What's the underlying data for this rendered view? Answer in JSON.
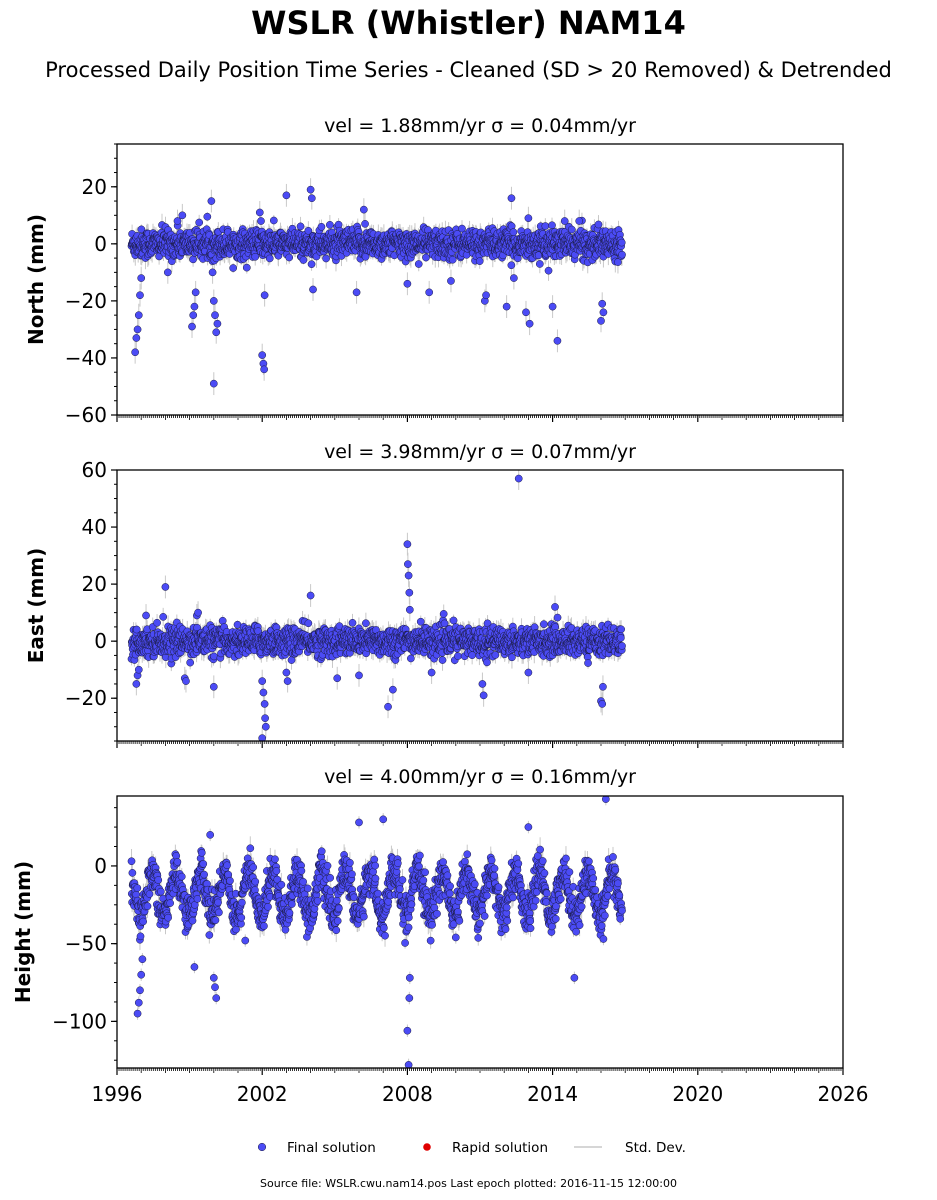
{
  "title": "WSLR (Whistler) NAM14",
  "subtitle": "Processed Daily Position Time Series - Cleaned (SD > 20 Removed) & Detrended",
  "source_text": "Source file: WSLR.cwu.nam14.pos  Last epoch plotted: 2016-11-15 12:00:00",
  "colors": {
    "final": "#4b4bf5",
    "final_edge": "#1a1a40",
    "rapid": "#e00000",
    "stddev": "#c8c8c8"
  },
  "legend": [
    {
      "label": "Final solution",
      "kind": "final",
      "color": "#4b4bf5"
    },
    {
      "label": "Rapid solution",
      "kind": "rapid",
      "color": "#e00000"
    },
    {
      "label": "Std. Dev.",
      "kind": "stddev",
      "color": "#c8c8c8"
    }
  ],
  "chart_data": [
    {
      "type": "scatter",
      "title": "vel = 1.88mm/yr   σ = 0.04mm/yr",
      "ylabel": "North (mm)",
      "xlim": [
        1996,
        2026
      ],
      "ylim": [
        -60,
        35
      ],
      "yticks": [
        20,
        0,
        -20,
        -40,
        -60
      ],
      "xticks": [
        1996,
        2002,
        2008,
        2014,
        2020,
        2026
      ],
      "show_xtick_labels": false,
      "data_span": [
        1996.6,
        2016.87
      ],
      "baseline_noise_mm": 2.5,
      "seasonal_amplitude_mm": 0,
      "points": [
        {
          "x": 1996.75,
          "y": -38
        },
        {
          "x": 1996.8,
          "y": -33
        },
        {
          "x": 1996.85,
          "y": -30
        },
        {
          "x": 1996.9,
          "y": -25
        },
        {
          "x": 1996.95,
          "y": -18
        },
        {
          "x": 1997.0,
          "y": -12
        },
        {
          "x": 1998.1,
          "y": -10
        },
        {
          "x": 1998.5,
          "y": 8
        },
        {
          "x": 1998.7,
          "y": 10
        },
        {
          "x": 1999.1,
          "y": -29
        },
        {
          "x": 1999.15,
          "y": -25
        },
        {
          "x": 1999.2,
          "y": -22
        },
        {
          "x": 1999.25,
          "y": -17
        },
        {
          "x": 1999.9,
          "y": 15
        },
        {
          "x": 1999.95,
          "y": -10
        },
        {
          "x": 2000.0,
          "y": -20
        },
        {
          "x": 2000.05,
          "y": -25
        },
        {
          "x": 2000.1,
          "y": -31
        },
        {
          "x": 2000.15,
          "y": -28
        },
        {
          "x": 2000.0,
          "y": -49
        },
        {
          "x": 2001.9,
          "y": 11
        },
        {
          "x": 2001.95,
          "y": 8
        },
        {
          "x": 2002.0,
          "y": -39
        },
        {
          "x": 2002.05,
          "y": -42
        },
        {
          "x": 2002.08,
          "y": -44
        },
        {
          "x": 2002.1,
          "y": -18
        },
        {
          "x": 2003.0,
          "y": 17
        },
        {
          "x": 2004.0,
          "y": 19
        },
        {
          "x": 2004.05,
          "y": 16
        },
        {
          "x": 2004.1,
          "y": -16
        },
        {
          "x": 2005.9,
          "y": -17
        },
        {
          "x": 2006.2,
          "y": 12
        },
        {
          "x": 2006.25,
          "y": 7
        },
        {
          "x": 2008.0,
          "y": -14
        },
        {
          "x": 2008.9,
          "y": -17
        },
        {
          "x": 2009.8,
          "y": -13
        },
        {
          "x": 2011.2,
          "y": -20
        },
        {
          "x": 2011.25,
          "y": -18
        },
        {
          "x": 2012.1,
          "y": -22
        },
        {
          "x": 2012.3,
          "y": 16
        },
        {
          "x": 2012.4,
          "y": -12
        },
        {
          "x": 2012.9,
          "y": -24
        },
        {
          "x": 2013.0,
          "y": 9
        },
        {
          "x": 2013.05,
          "y": -28
        },
        {
          "x": 2014.0,
          "y": -22
        },
        {
          "x": 2014.2,
          "y": -34
        },
        {
          "x": 2014.5,
          "y": 8
        },
        {
          "x": 2015.1,
          "y": 8
        },
        {
          "x": 2016.0,
          "y": -27
        },
        {
          "x": 2016.05,
          "y": -21
        },
        {
          "x": 2016.1,
          "y": -24
        }
      ]
    },
    {
      "type": "scatter",
      "title": "vel = 3.98mm/yr   σ = 0.07mm/yr",
      "ylabel": "East (mm)",
      "xlim": [
        1996,
        2026
      ],
      "ylim": [
        -35,
        60
      ],
      "yticks": [
        60,
        40,
        20,
        0,
        -20
      ],
      "xticks": [
        1996,
        2002,
        2008,
        2014,
        2020,
        2026
      ],
      "show_xtick_labels": false,
      "data_span": [
        1996.6,
        2016.87
      ],
      "baseline_noise_mm": 2.5,
      "seasonal_amplitude_mm": 0,
      "points": [
        {
          "x": 1996.8,
          "y": -15
        },
        {
          "x": 1996.85,
          "y": -12
        },
        {
          "x": 1996.9,
          "y": -10
        },
        {
          "x": 1997.2,
          "y": 9
        },
        {
          "x": 1998.0,
          "y": 19
        },
        {
          "x": 1998.8,
          "y": -13
        },
        {
          "x": 1998.85,
          "y": -14
        },
        {
          "x": 1999.3,
          "y": 9
        },
        {
          "x": 1999.35,
          "y": 10
        },
        {
          "x": 2000.0,
          "y": -16
        },
        {
          "x": 2002.0,
          "y": -14
        },
        {
          "x": 2002.05,
          "y": -18
        },
        {
          "x": 2002.1,
          "y": -22
        },
        {
          "x": 2002.12,
          "y": -27
        },
        {
          "x": 2002.15,
          "y": -30
        },
        {
          "x": 2002.0,
          "y": -34
        },
        {
          "x": 2003.0,
          "y": -11
        },
        {
          "x": 2003.05,
          "y": -14
        },
        {
          "x": 2004.0,
          "y": 16
        },
        {
          "x": 2005.1,
          "y": -13
        },
        {
          "x": 2006.0,
          "y": -12
        },
        {
          "x": 2007.2,
          "y": -23
        },
        {
          "x": 2007.4,
          "y": -17
        },
        {
          "x": 2008.0,
          "y": 34
        },
        {
          "x": 2008.02,
          "y": 27
        },
        {
          "x": 2008.05,
          "y": 23
        },
        {
          "x": 2008.08,
          "y": 17
        },
        {
          "x": 2008.1,
          "y": 11
        },
        {
          "x": 2009.0,
          "y": -11
        },
        {
          "x": 2011.1,
          "y": -15
        },
        {
          "x": 2011.15,
          "y": -19
        },
        {
          "x": 2012.6,
          "y": 57
        },
        {
          "x": 2013.0,
          "y": -11
        },
        {
          "x": 2014.1,
          "y": 12
        },
        {
          "x": 2016.0,
          "y": -21
        },
        {
          "x": 2016.05,
          "y": -22
        },
        {
          "x": 2016.08,
          "y": -16
        }
      ]
    },
    {
      "type": "scatter",
      "title": "vel = 4.00mm/yr   σ = 0.16mm/yr",
      "ylabel": "Height (mm)",
      "xlim": [
        1996,
        2026
      ],
      "ylim": [
        -130,
        45
      ],
      "yticks": [
        0,
        -50,
        -100
      ],
      "xticks": [
        1996,
        2002,
        2008,
        2014,
        2020,
        2026
      ],
      "show_xtick_labels": true,
      "data_span": [
        1996.6,
        2016.87
      ],
      "baseline_mm": -18,
      "baseline_noise_mm": 6,
      "seasonal_amplitude_mm": 14,
      "points": [
        {
          "x": 1996.85,
          "y": -95
        },
        {
          "x": 1996.9,
          "y": -88
        },
        {
          "x": 1996.95,
          "y": -80
        },
        {
          "x": 1997.0,
          "y": -70
        },
        {
          "x": 1997.05,
          "y": -60
        },
        {
          "x": 1999.2,
          "y": -65
        },
        {
          "x": 1999.85,
          "y": 20
        },
        {
          "x": 2000.0,
          "y": -72
        },
        {
          "x": 2000.05,
          "y": -78
        },
        {
          "x": 2000.1,
          "y": -85
        },
        {
          "x": 2001.3,
          "y": -48
        },
        {
          "x": 2006.0,
          "y": 28
        },
        {
          "x": 2007.0,
          "y": 30
        },
        {
          "x": 2008.0,
          "y": -106
        },
        {
          "x": 2008.05,
          "y": -128
        },
        {
          "x": 2008.08,
          "y": -85
        },
        {
          "x": 2008.1,
          "y": -72
        },
        {
          "x": 2010.0,
          "y": -46
        },
        {
          "x": 2013.0,
          "y": 25
        },
        {
          "x": 2014.9,
          "y": -72
        },
        {
          "x": 2016.2,
          "y": 43
        },
        {
          "x": 2016.1,
          "y": -47
        }
      ]
    }
  ]
}
